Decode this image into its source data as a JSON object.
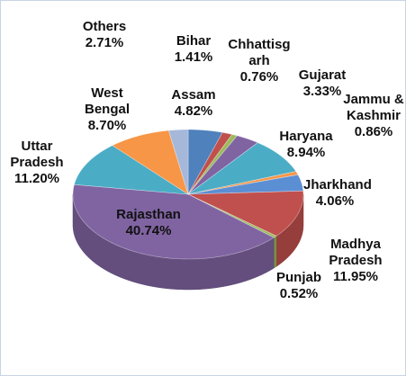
{
  "chart_data": {
    "type": "pie",
    "categories": [
      "Assam",
      "Bihar",
      "Chhattisgarh",
      "Gujarat",
      "Haryana",
      "Jammu & Kashmir",
      "Jharkhand",
      "Madhya Pradesh",
      "Punjab",
      "Rajasthan",
      "Uttar Pradesh",
      "West Bengal",
      "Others"
    ],
    "values": [
      4.82,
      1.41,
      0.76,
      3.33,
      8.94,
      0.86,
      4.06,
      11.95,
      0.52,
      40.74,
      11.2,
      8.7,
      2.71
    ],
    "value_labels": [
      "4.82%",
      "1.41%",
      "0.76%",
      "3.33%",
      "8.94%",
      "0.86%",
      "4.06%",
      "11.95%",
      "0.52%",
      "40.74%",
      "11.20%",
      "8.70%",
      "2.71%"
    ],
    "colors": [
      "#4f81bd",
      "#c0504d",
      "#9bbb59",
      "#8064a2",
      "#4bacc6",
      "#f79646",
      "#5b8fd4",
      "#c0504d",
      "#9bbb59",
      "#8064a2",
      "#4bacc6",
      "#f79646",
      "#a5b8da"
    ]
  }
}
